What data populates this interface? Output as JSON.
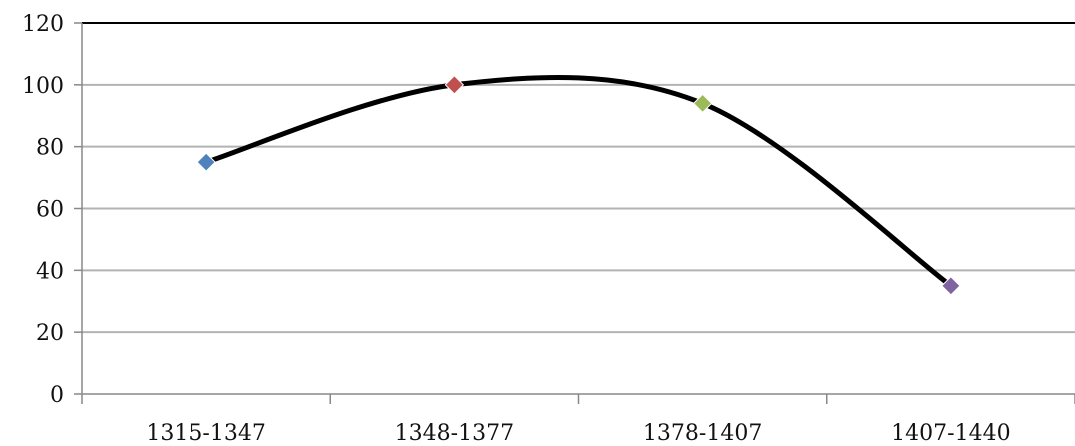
{
  "chart_data": {
    "type": "line",
    "title": "",
    "xlabel": "",
    "ylabel": "",
    "categories": [
      "1315-1347",
      "1348-1377",
      "1378-1407",
      "1407-1440"
    ],
    "series": [
      {
        "values": [
          75,
          100,
          94,
          35
        ],
        "marker_colors": [
          "#4f81bd",
          "#c0504d",
          "#9bbb59",
          "#8064a2"
        ]
      }
    ],
    "ylim": [
      0,
      120
    ],
    "yticks": [
      "0",
      "20",
      "40",
      "60",
      "80",
      "100",
      "120"
    ],
    "grid": true,
    "smooth": true,
    "line_color": "#000000",
    "grid_color": "#b3b3b3"
  }
}
